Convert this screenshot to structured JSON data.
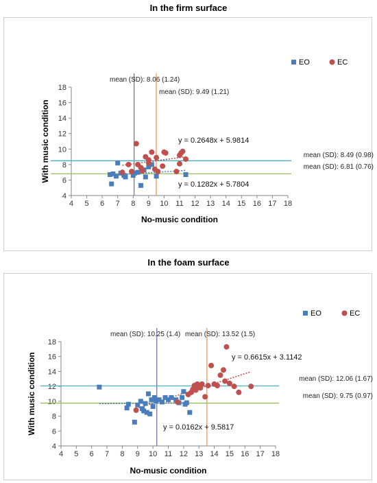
{
  "panels": [
    {
      "title": "In the firm surface"
    },
    {
      "title": "In the foam surface"
    }
  ],
  "colors": {
    "eo": "#4a7ebb",
    "ec": "#c0504d",
    "mean_x_no_music_eo": "#7f6fa8",
    "mean_x_no_music_ec": "#f79646",
    "mean_y_ec": "#4bacc6",
    "mean_y_eo": "#9bbb59",
    "axis": "#868686"
  },
  "chart_data": [
    {
      "type": "scatter",
      "title": "In the firm surface",
      "xlabel": "No-music condition",
      "ylabel": "With music condition",
      "xlim": [
        4,
        18
      ],
      "ylim": [
        4,
        18
      ],
      "xticks": [
        4,
        5,
        6,
        7,
        8,
        9,
        10,
        11,
        12,
        13,
        14,
        15,
        16,
        17,
        18
      ],
      "yticks": [
        4,
        6,
        8,
        10,
        12,
        14,
        16,
        18
      ],
      "legend": [
        "EO",
        "EC"
      ],
      "legend_position": "top-right",
      "series": [
        {
          "name": "EO",
          "marker": "square",
          "points": [
            [
              6.5,
              6.7
            ],
            [
              6.6,
              5.5
            ],
            [
              6.7,
              6.8
            ],
            [
              6.9,
              6.5
            ],
            [
              7.0,
              8.2
            ],
            [
              7.2,
              6.9
            ],
            [
              7.4,
              6.6
            ],
            [
              7.5,
              6.4
            ],
            [
              8.0,
              6.6
            ],
            [
              8.1,
              6.9
            ],
            [
              8.3,
              7.0
            ],
            [
              8.5,
              5.3
            ],
            [
              8.7,
              7.3
            ],
            [
              8.8,
              6.4
            ],
            [
              9.0,
              7.7
            ],
            [
              9.2,
              8.0
            ],
            [
              9.5,
              6.5
            ],
            [
              11.4,
              6.7
            ]
          ]
        },
        {
          "name": "EC",
          "marker": "circle",
          "points": [
            [
              7.3,
              7.0
            ],
            [
              7.7,
              8.0
            ],
            [
              7.9,
              7.1
            ],
            [
              8.2,
              10.7
            ],
            [
              8.3,
              8.0
            ],
            [
              8.5,
              7.6
            ],
            [
              8.6,
              7.2
            ],
            [
              8.8,
              9.0
            ],
            [
              9.0,
              8.6
            ],
            [
              9.0,
              8.2
            ],
            [
              9.2,
              9.6
            ],
            [
              9.4,
              7.4
            ],
            [
              9.5,
              8.9
            ],
            [
              9.6,
              7.1
            ],
            [
              9.9,
              7.8
            ],
            [
              10.0,
              9.6
            ],
            [
              10.1,
              9.5
            ],
            [
              10.8,
              7.1
            ],
            [
              11.0,
              8.1
            ],
            [
              11.0,
              9.2
            ],
            [
              11.1,
              9.5
            ],
            [
              11.2,
              9.7
            ],
            [
              11.4,
              8.7
            ]
          ]
        }
      ],
      "trendlines": [
        {
          "series": "EC",
          "equation": "y = 0.2648x + 5.9814",
          "slope": 0.2648,
          "intercept": 5.9814,
          "x_range": [
            7.3,
            11.4
          ]
        },
        {
          "series": "EO",
          "equation": "y = 0.1282x + 5.7804",
          "slope": 0.1282,
          "intercept": 5.7804,
          "x_range": [
            6.5,
            11.4
          ]
        }
      ],
      "mean_lines": [
        {
          "axis": "x",
          "value": 8.06,
          "label": "mean (SD): 8.06 (1.24)",
          "color_key": "mean_x_no_music_eo"
        },
        {
          "axis": "x",
          "value": 9.49,
          "label": "mean (SD): 9.49 (1.21)",
          "color_key": "mean_x_no_music_ec"
        },
        {
          "axis": "y",
          "value": 8.49,
          "label": "mean (SD): 8.49 (0.98)",
          "color_key": "mean_y_ec"
        },
        {
          "axis": "y",
          "value": 6.81,
          "label": "mean (SD): 6.81 (0.76)",
          "color_key": "mean_y_eo"
        }
      ]
    },
    {
      "type": "scatter",
      "title": "In the foam surface",
      "xlabel": "No-music condition",
      "ylabel": "With music condition",
      "xlim": [
        4,
        18
      ],
      "ylim": [
        4,
        18
      ],
      "xticks": [
        4,
        5,
        6,
        7,
        8,
        9,
        10,
        11,
        12,
        13,
        14,
        15,
        16,
        17,
        18
      ],
      "yticks": [
        4,
        6,
        8,
        10,
        12,
        14,
        16,
        18
      ],
      "legend": [
        "EO",
        "EC"
      ],
      "legend_position": "top-right",
      "series": [
        {
          "name": "EO",
          "marker": "square",
          "points": [
            [
              6.5,
              11.9
            ],
            [
              8.3,
              9.1
            ],
            [
              8.4,
              9.6
            ],
            [
              8.8,
              7.2
            ],
            [
              9.0,
              9.5
            ],
            [
              9.2,
              10.0
            ],
            [
              9.3,
              9.0
            ],
            [
              9.4,
              8.7
            ],
            [
              9.5,
              9.7
            ],
            [
              9.6,
              8.5
            ],
            [
              9.7,
              11.0
            ],
            [
              9.8,
              8.3
            ],
            [
              9.9,
              10.2
            ],
            [
              10.0,
              9.3
            ],
            [
              10.1,
              10.5
            ],
            [
              10.2,
              10.0
            ],
            [
              10.4,
              10.2
            ],
            [
              10.6,
              9.9
            ],
            [
              10.8,
              10.5
            ],
            [
              11.0,
              10.2
            ],
            [
              11.2,
              10.5
            ],
            [
              11.5,
              10.2
            ],
            [
              11.7,
              9.8
            ],
            [
              11.9,
              10.5
            ],
            [
              12.0,
              11.3
            ],
            [
              12.1,
              9.6
            ],
            [
              12.2,
              9.8
            ],
            [
              12.4,
              8.5
            ]
          ]
        },
        {
          "name": "EC",
          "marker": "circle",
          "points": [
            [
              8.9,
              8.8
            ],
            [
              11.6,
              9.9
            ],
            [
              12.3,
              10.9
            ],
            [
              12.5,
              11.2
            ],
            [
              12.6,
              11.6
            ],
            [
              12.7,
              12.1
            ],
            [
              12.8,
              11.5
            ],
            [
              12.9,
              12.3
            ],
            [
              13.0,
              12.0
            ],
            [
              13.1,
              11.8
            ],
            [
              13.2,
              12.3
            ],
            [
              13.4,
              10.6
            ],
            [
              13.6,
              12.1
            ],
            [
              13.8,
              14.8
            ],
            [
              14.0,
              12.3
            ],
            [
              14.2,
              12.1
            ],
            [
              14.4,
              13.5
            ],
            [
              14.6,
              14.2
            ],
            [
              14.7,
              12.7
            ],
            [
              14.8,
              17.3
            ],
            [
              15.0,
              12.4
            ],
            [
              15.3,
              12.0
            ],
            [
              15.6,
              11.2
            ],
            [
              16.4,
              12.0
            ]
          ]
        }
      ],
      "trendlines": [
        {
          "series": "EC",
          "equation": "y = 0.6615x + 3.1142",
          "slope": 0.6615,
          "intercept": 3.1142,
          "x_range": [
            8.9,
            16.4
          ]
        },
        {
          "series": "EO",
          "equation": "y = 0.0162x + 9.5817",
          "slope": 0.0162,
          "intercept": 9.5817,
          "x_range": [
            6.5,
            12.4
          ]
        }
      ],
      "mean_lines": [
        {
          "axis": "x",
          "value": 10.25,
          "label": "mean (SD): 10.25 (1.4)",
          "color_key": "mean_x_no_music_eo"
        },
        {
          "axis": "x",
          "value": 13.52,
          "label": "mean (SD): 13.52 (1.5)",
          "color_key": "mean_x_no_music_ec"
        },
        {
          "axis": "y",
          "value": 12.06,
          "label": "mean (SD): 12.06 (1.67)",
          "color_key": "mean_y_ec"
        },
        {
          "axis": "y",
          "value": 9.75,
          "label": "mean (SD): 9.75 (0.97)",
          "color_key": "mean_y_eo"
        }
      ]
    }
  ]
}
